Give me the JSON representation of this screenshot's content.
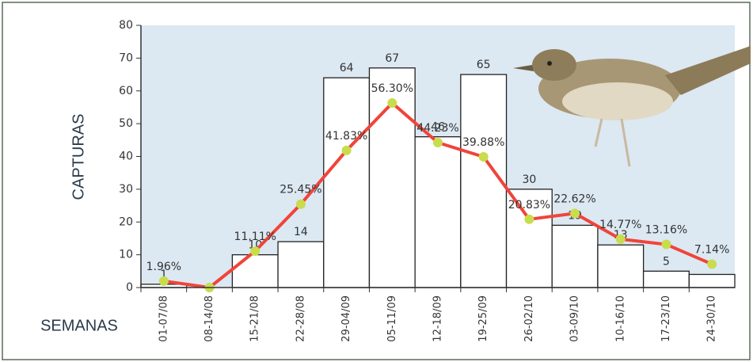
{
  "chart_data": {
    "type": "bar_line",
    "y_label": "CAPTURAS",
    "x_label": "SEMANAS",
    "categories": [
      "01-07/08",
      "08-14/08",
      "15-21/08",
      "22-28/08",
      "29-04/09",
      "05-11/09",
      "12-18/09",
      "19-25/09",
      "26-02/10",
      "03-09/10",
      "10-16/10",
      "17-23/10",
      "24-30/10"
    ],
    "series": [
      {
        "type": "bar",
        "color": "#ffffff",
        "values": [
          1,
          0,
          10,
          14,
          64,
          67,
          46,
          65,
          30,
          19,
          13,
          5,
          4
        ],
        "value_labels": [
          "1",
          null,
          "10",
          "14",
          "64",
          "67",
          "46",
          "65",
          "30",
          "19",
          "13",
          "5",
          "4"
        ]
      },
      {
        "type": "line",
        "color": "#f0443a",
        "marker_color": "#c9dc4c",
        "values": [
          1.96,
          0,
          11.11,
          25.45,
          41.83,
          56.3,
          44.23,
          39.88,
          20.83,
          22.62,
          14.77,
          13.16,
          7.14
        ],
        "value_labels": [
          "1.96%",
          null,
          "11.11%",
          "25.45%",
          "41.83%",
          "56.30%",
          "44.23%",
          "39.88%",
          "20.83%",
          "22.62%",
          "14.77%",
          "13.16%",
          "7.14%"
        ]
      }
    ],
    "ylim": [
      0,
      80
    ],
    "yticks": [
      0,
      10,
      20,
      30,
      40,
      50,
      60,
      70,
      80
    ],
    "background": "#dce8f2"
  }
}
